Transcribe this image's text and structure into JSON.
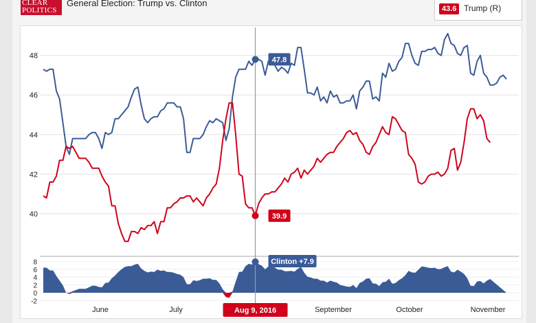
{
  "header": {
    "logo_line1": "CLEAR",
    "logo_line2": "POLITICS",
    "title": "General Election: Trump vs. Clinton"
  },
  "legend": {
    "value": "43.6",
    "name": "Trump (R)",
    "color": "#d0021b"
  },
  "crosshair": {
    "date_label": "Aug 9, 2016",
    "clinton_label": "47.8",
    "trump_label": "39.9",
    "spread_label": "Clinton +7.9"
  },
  "chart_data": [
    {
      "type": "line",
      "x_ticks": [
        "June",
        "July",
        "Aug 9, 2016",
        "September",
        "October",
        "November"
      ],
      "y_ticks": [
        "40",
        "42",
        "44",
        "46",
        "48"
      ],
      "ylim": [
        38.5,
        49.5
      ],
      "series": [
        {
          "name": "Clinton",
          "color": "#3b5b97",
          "values": [
            47.3,
            47.2,
            47.3,
            47.3,
            46.2,
            45.8,
            44.6,
            43.4,
            43.0,
            43.8,
            43.8,
            43.8,
            43.8,
            43.8,
            44.0,
            44.1,
            44.1,
            43.8,
            43.3,
            44.1,
            44.0,
            44.1,
            44.8,
            44.8,
            45.0,
            45.2,
            45.4,
            45.9,
            46.3,
            46.4,
            45.5,
            44.8,
            44.6,
            44.8,
            44.9,
            44.9,
            45.2,
            45.3,
            45.6,
            45.6,
            45.6,
            45.4,
            45.4,
            44.8,
            43.1,
            43.1,
            43.8,
            43.8,
            43.8,
            44.0,
            44.4,
            44.7,
            44.6,
            44.8,
            44.7,
            44.6,
            43.7,
            44.3,
            45.9,
            46.9,
            47.3,
            47.3,
            47.3,
            47.7,
            47.5,
            47.8,
            47.8,
            47.7,
            47.0,
            47.7,
            47.9,
            47.5,
            47.2,
            47.4,
            47.3,
            47.1,
            47.6,
            47.5,
            48.4,
            48.4,
            47.3,
            46.1,
            46.1,
            46.0,
            46.4,
            45.7,
            45.9,
            45.6,
            46.2,
            45.9,
            46.0,
            45.6,
            45.6,
            45.7,
            45.7,
            46.0,
            45.3,
            46.2,
            46.4,
            46.7,
            46.7,
            45.8,
            45.9,
            45.7,
            47.1,
            46.9,
            47.6,
            47.2,
            47.3,
            47.7,
            47.9,
            48.6,
            48.6,
            48.0,
            47.6,
            47.5,
            48.2,
            48.2,
            48.3,
            48.3,
            48.4,
            48.1,
            48.0,
            48.8,
            49.1,
            48.6,
            48.5,
            48.1,
            48.0,
            48.4,
            48.5,
            47.1,
            47.0,
            47.7,
            48.0,
            47.1,
            46.9,
            46.5,
            46.5,
            46.6,
            46.9,
            47.0,
            46.8
          ],
          "xlim_days": [
            140
          ]
        },
        {
          "name": "Trump",
          "color": "#d0021b",
          "values": [
            40.9,
            40.8,
            41.6,
            41.6,
            41.9,
            42.7,
            42.7,
            43.4,
            43.3,
            43.4,
            43.1,
            42.8,
            42.8,
            42.8,
            42.6,
            42.3,
            42.3,
            42.3,
            41.9,
            41.6,
            41.4,
            40.4,
            40.4,
            39.5,
            39.0,
            38.6,
            38.6,
            39.1,
            39.1,
            39.0,
            39.3,
            39.2,
            39.4,
            39.4,
            39.6,
            39.0,
            39.6,
            39.6,
            40.3,
            40.3,
            40.5,
            40.6,
            40.8,
            40.8,
            40.9,
            40.9,
            40.6,
            40.8,
            40.6,
            40.4,
            40.8,
            41.0,
            41.3,
            41.5,
            42.3,
            43.7,
            44.8,
            45.6,
            45.6,
            44.0,
            42.0,
            41.9,
            40.5,
            40.3,
            40.3,
            39.9,
            40.5,
            40.8,
            41.0,
            41.0,
            41.1,
            41.1,
            41.3,
            41.5,
            41.8,
            41.6,
            42.0,
            42.1,
            42.3,
            41.8,
            42.2,
            42.0,
            42.2,
            42.4,
            42.8,
            42.6,
            42.8,
            43.0,
            43.1,
            43.1,
            43.4,
            43.6,
            43.8,
            44.1,
            44.2,
            44.0,
            44.1,
            43.7,
            43.5,
            43.1,
            43.0,
            43.4,
            43.6,
            44.0,
            44.4,
            44.1,
            44.0,
            44.9,
            44.8,
            44.5,
            44.2,
            44.1,
            43.0,
            42.8,
            42.5,
            41.6,
            41.5,
            41.6,
            41.9,
            42.0,
            42.0,
            42.1,
            41.9,
            42.0,
            42.3,
            43.2,
            43.3,
            42.2,
            42.6,
            43.6,
            44.8,
            45.3,
            45.3,
            44.8,
            45.0,
            44.7,
            43.8,
            43.6
          ],
          "xlim_days": [
            140
          ]
        }
      ]
    },
    {
      "type": "area",
      "name": "Clinton spread",
      "y_ticks": [
        "8",
        "6",
        "4",
        "2",
        "0",
        "-2"
      ],
      "ylim": [
        -2,
        8
      ],
      "color": "#3b5b97",
      "negative_color": "#d0021b",
      "values": [
        6.4,
        6.4,
        5.7,
        5.7,
        4.3,
        3.1,
        1.9,
        0.0,
        -0.3,
        0.4,
        0.7,
        1.0,
        1.0,
        1.0,
        1.4,
        1.8,
        1.8,
        1.5,
        1.4,
        2.5,
        2.6,
        3.7,
        4.4,
        5.3,
        6.0,
        6.6,
        6.8,
        6.8,
        7.2,
        7.4,
        6.2,
        5.6,
        5.2,
        5.4,
        5.3,
        5.9,
        5.6,
        5.7,
        5.3,
        5.3,
        5.1,
        4.8,
        4.6,
        4.0,
        2.2,
        2.2,
        3.2,
        3.0,
        3.2,
        3.6,
        3.6,
        3.7,
        3.3,
        3.3,
        2.4,
        0.9,
        -1.1,
        -1.3,
        0.3,
        2.9,
        5.3,
        5.4,
        6.8,
        7.4,
        7.2,
        7.9,
        7.3,
        6.9,
        6.0,
        6.7,
        6.8,
        6.4,
        5.9,
        5.9,
        5.5,
        5.5,
        5.6,
        5.4,
        6.1,
        6.6,
        5.1,
        4.1,
        3.9,
        3.6,
        3.6,
        3.1,
        3.1,
        2.6,
        3.1,
        2.8,
        2.6,
        2.0,
        1.8,
        1.6,
        1.5,
        2.0,
        1.2,
        2.5,
        2.9,
        3.6,
        3.7,
        2.4,
        2.3,
        1.7,
        2.7,
        2.8,
        3.6,
        2.3,
        2.5,
        3.2,
        3.7,
        4.5,
        5.6,
        5.2,
        5.1,
        5.9,
        6.7,
        6.6,
        6.4,
        6.3,
        6.4,
        6.0,
        6.1,
        6.5,
        6.8,
        5.4,
        5.2,
        5.9,
        5.4,
        4.8,
        3.7,
        1.8,
        1.7,
        2.9,
        3.0,
        2.4,
        3.1,
        3.5
      ]
    }
  ]
}
